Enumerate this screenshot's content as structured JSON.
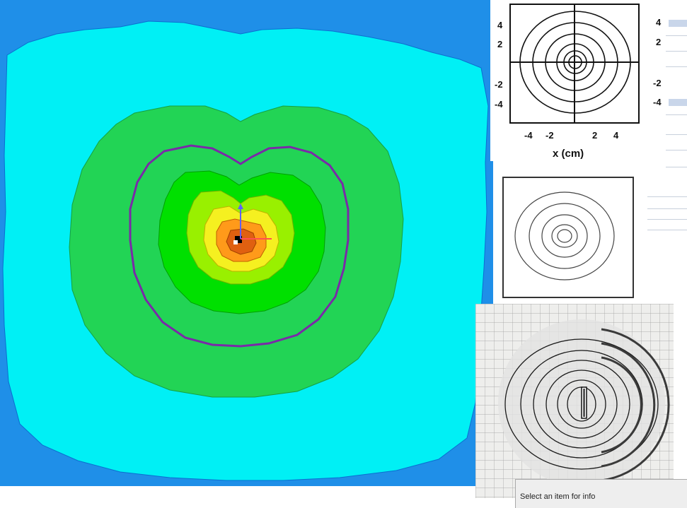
{
  "main_plot": {
    "colors": {
      "outer": "#1f8fe8",
      "cyan": "#00f0f5",
      "mid_green": "#22d455",
      "green": "#00e000",
      "light_green": "#99f000",
      "yellow": "#f5f020",
      "orange": "#ff9a1a",
      "dark_orange": "#e06010",
      "contour_line": "#7a2aa8",
      "axis_x": "#ff5050",
      "axis_y": "#6060ff"
    }
  },
  "ref_top": {
    "y_ticks": [
      "4",
      "2",
      "-2",
      "-4"
    ],
    "x_ticks": [
      "-4",
      "-2",
      "2",
      "4"
    ],
    "x_label": "x (cm)"
  },
  "side_panel": {
    "labels": [
      "4",
      "2",
      "-2",
      "-4"
    ]
  },
  "status": {
    "text": "Select an item for info"
  }
}
